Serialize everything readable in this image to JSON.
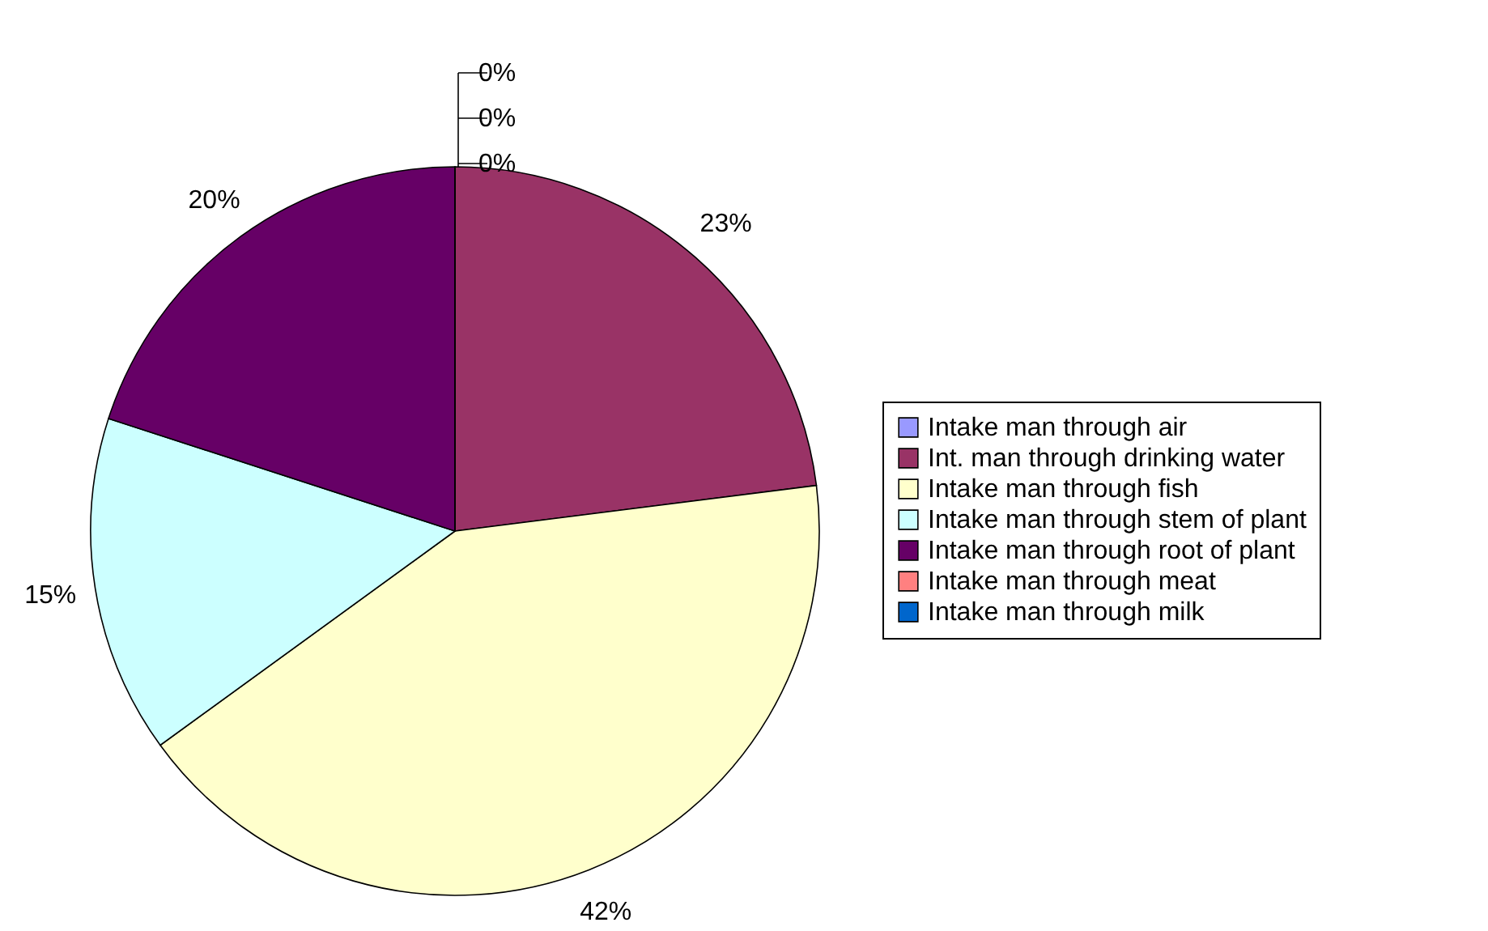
{
  "chart_data": {
    "type": "pie",
    "categories": [
      "Intake man through air",
      "Int. man through drinking water",
      "Intake man through fish",
      "Intake man through stem of plant",
      "Intake man through root of plant",
      "Intake man through meat",
      "Intake man through milk"
    ],
    "values": [
      0,
      23,
      42,
      15,
      20,
      0,
      0
    ],
    "colors": [
      "#9999ff",
      "#993366",
      "#ffffcc",
      "#ccffff",
      "#660066",
      "#ff8080",
      "#0066cc"
    ],
    "value_labels": [
      "0%",
      "23%",
      "42%",
      "15%",
      "20%",
      "0%",
      "0%"
    ],
    "legend": "right"
  }
}
